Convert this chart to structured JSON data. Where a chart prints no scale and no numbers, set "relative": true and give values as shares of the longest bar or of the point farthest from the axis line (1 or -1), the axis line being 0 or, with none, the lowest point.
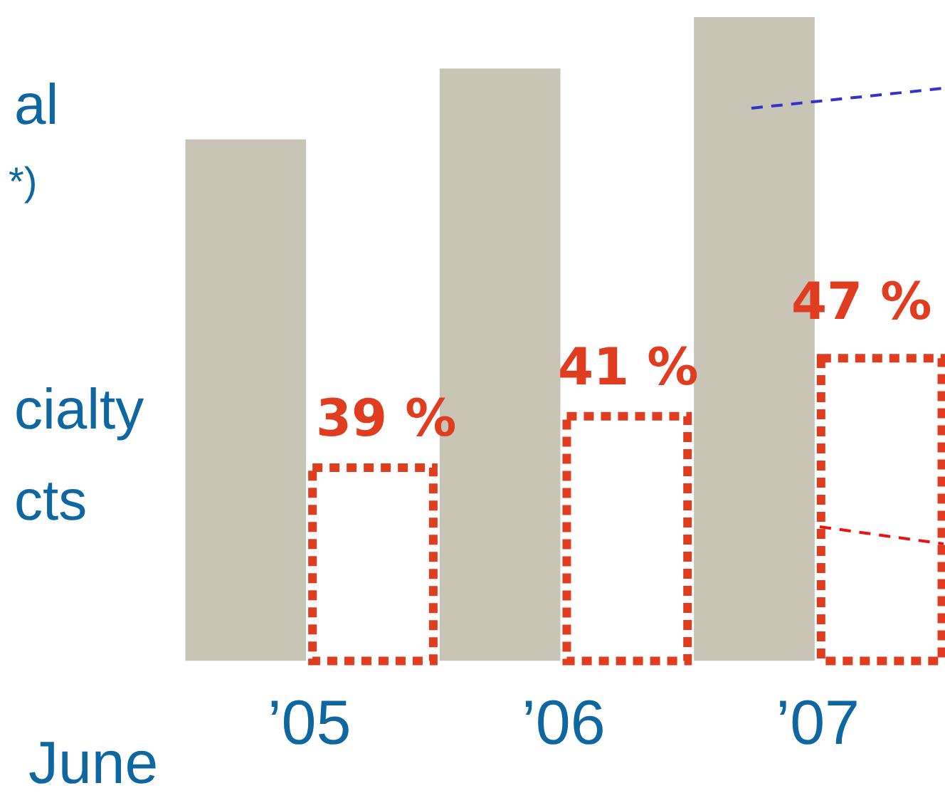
{
  "chart_data": {
    "type": "bar",
    "relative": true,
    "categories": [
      "’05",
      "’06",
      "’07"
    ],
    "xlabel": "June",
    "series": [
      {
        "color": "#c8c5b7",
        "values": [
          0.81,
          0.92,
          1
        ]
      },
      {
        "color": "#e03c1f",
        "line_style": "dotted",
        "values": [
          0.3,
          0.38,
          0.47
        ]
      }
    ],
    "annotations": [
      "al",
      "*)",
      "cialty",
      "cts",
      "39 %",
      "41 %",
      "47 %"
    ],
    "grid": false,
    "legend": false
  }
}
